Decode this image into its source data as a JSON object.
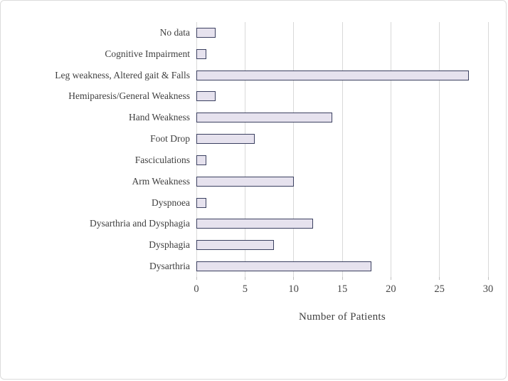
{
  "figure": {
    "colors": {
      "bar_fill": "#e6e2ee",
      "bar_border": "#3b4060",
      "gridline": "#d9d9d9",
      "tick_mark": "#bfbfbf",
      "text": "#3f3f3f",
      "frame": "#dcdcdc"
    }
  },
  "chart_data": {
    "type": "bar",
    "orientation": "horizontal",
    "title": "",
    "xlabel": "Number of Patients",
    "ylabel": "",
    "categories": [
      "No data",
      "Cognitive Impairment",
      "Leg weakness, Altered gait & Falls",
      "Hemiparesis/General Weakness",
      "Hand Weakness",
      "Foot Drop",
      "Fasciculations",
      "Arm Weakness",
      "Dyspnoea",
      "Dysarthria and Dysphagia",
      "Dysphagia",
      "Dysarthria"
    ],
    "values": [
      2,
      1,
      28,
      2,
      14,
      6,
      1,
      10,
      1,
      12,
      8,
      18
    ],
    "xlim": [
      0,
      30
    ],
    "xticks": [
      0,
      5,
      10,
      15,
      20,
      25,
      30
    ],
    "grid": true,
    "legend": false
  }
}
